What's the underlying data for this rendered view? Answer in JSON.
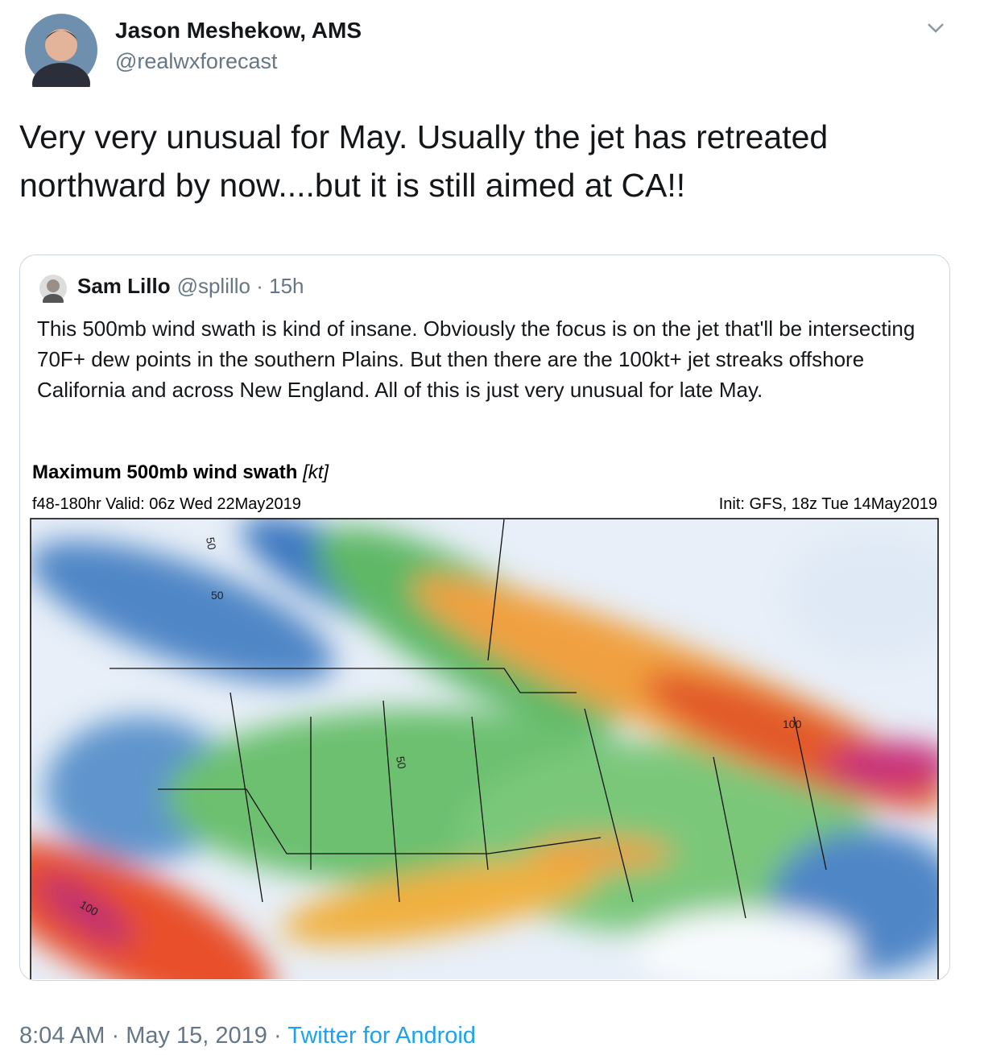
{
  "tweet": {
    "author": {
      "name": "Jason Meshekow, AMS",
      "handle": "@realwxforecast"
    },
    "text": "Very very unusual for May. Usually the jet has retreated northward by now....but it is still aimed at CA!!",
    "quoted": {
      "author": {
        "name": "Sam Lillo",
        "handle": "@splillo"
      },
      "separator": "·",
      "age": "15h",
      "text": "This 500mb wind swath is kind of insane. Obviously the focus is on the jet that'll be intersecting 70F+ dew points in the southern Plains. But then there are the 100kt+ jet streaks offshore California and across New England. All of this is just very unusual for late May.",
      "image": {
        "title": "Maximum 500mb wind swath",
        "unit": "[kt]",
        "valid": "f48-180hr Valid: 06z Wed 22May2019",
        "init": "Init: GFS, 18z Tue 14May2019",
        "contour_labels": [
          "50",
          "50",
          "100",
          "100",
          "50"
        ]
      }
    },
    "meta": {
      "time": "8:04 AM",
      "separator": "·",
      "date": "May 15, 2019",
      "source": "Twitter for Android"
    }
  }
}
